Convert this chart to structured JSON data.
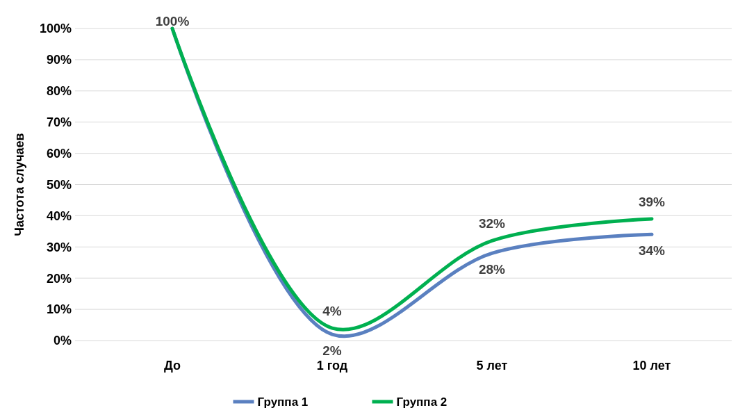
{
  "chart_data": {
    "type": "line",
    "ylabel": "Частота случаев",
    "categories": [
      "До",
      "1 год",
      "5 лет",
      "10 лет"
    ],
    "series": [
      {
        "name": "Группа 1",
        "color": "#5a80c0",
        "values": [
          100,
          2,
          28,
          34
        ],
        "value_labels": [
          null,
          "2%",
          "28%",
          "34%"
        ]
      },
      {
        "name": "Группа 2",
        "color": "#00b050",
        "values": [
          100,
          4,
          32,
          39
        ],
        "value_labels": [
          "100%",
          "4%",
          "32%",
          "39%"
        ]
      }
    ],
    "ylim": [
      0,
      100
    ],
    "yticks": [
      {
        "value": 0,
        "label": "0%"
      },
      {
        "value": 10,
        "label": "10%"
      },
      {
        "value": 20,
        "label": "20%"
      },
      {
        "value": 30,
        "label": "30%"
      },
      {
        "value": 40,
        "label": "40%"
      },
      {
        "value": 50,
        "label": "50%"
      },
      {
        "value": 60,
        "label": "60%"
      },
      {
        "value": 70,
        "label": "70%"
      },
      {
        "value": 80,
        "label": "80%"
      },
      {
        "value": 90,
        "label": "90%"
      },
      {
        "value": 100,
        "label": "100%"
      }
    ],
    "grid": "y",
    "legend": "bottom",
    "marker": "none",
    "line_style": "solid"
  }
}
